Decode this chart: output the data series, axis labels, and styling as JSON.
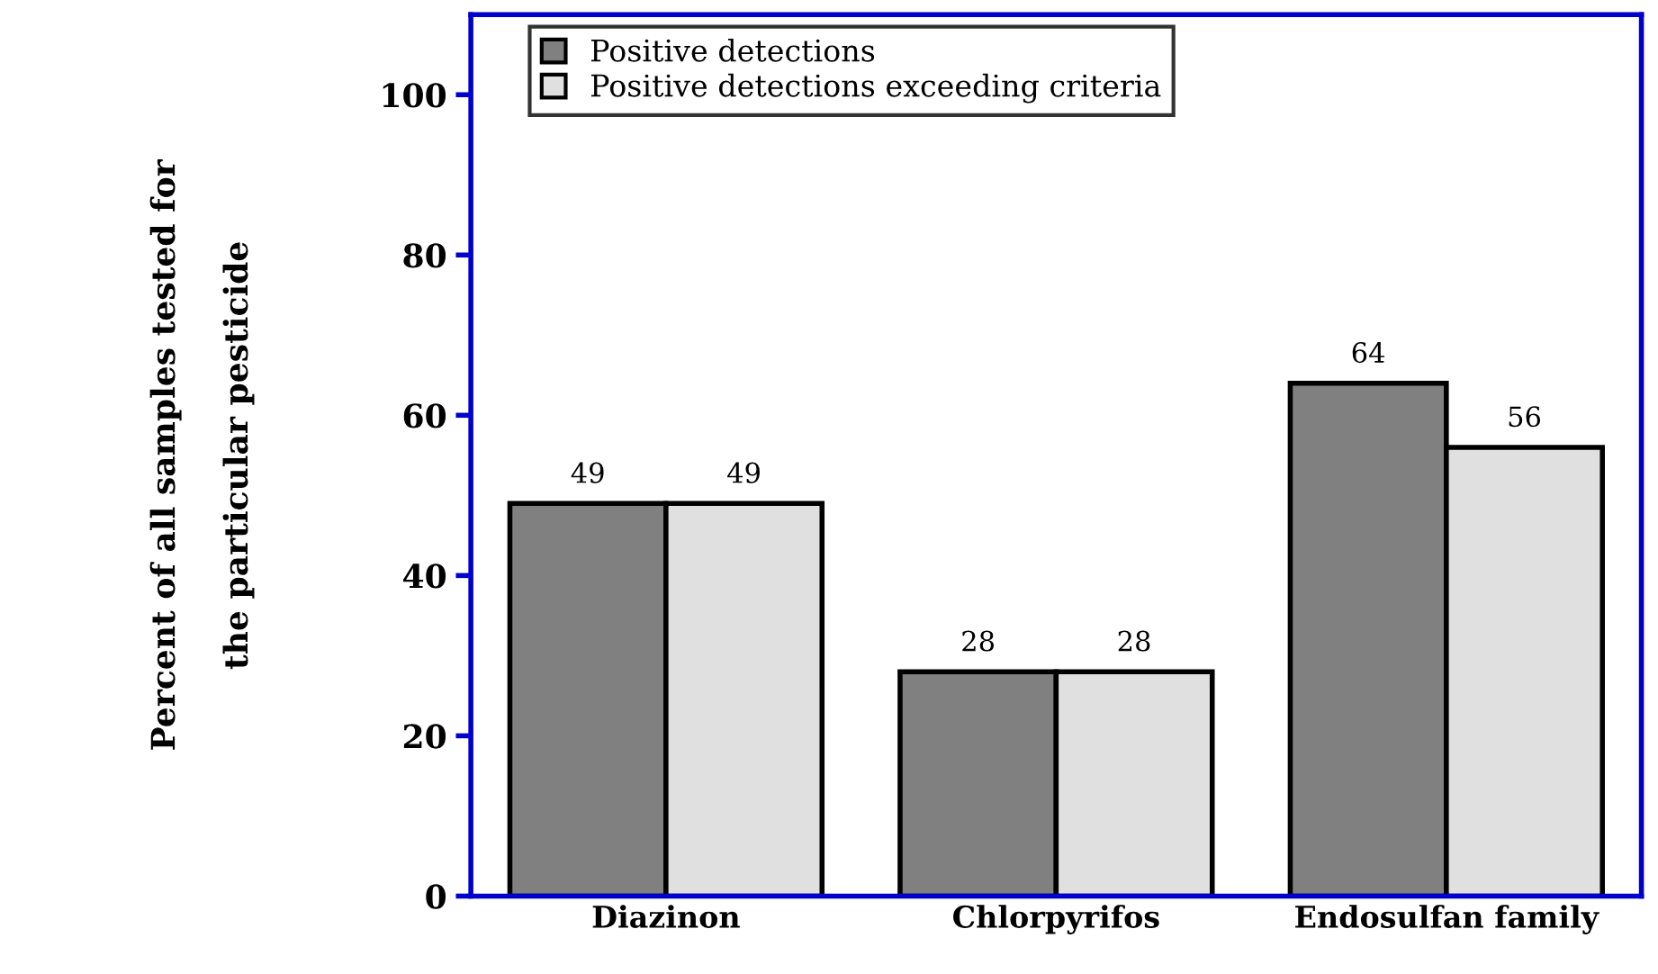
{
  "chart_data": {
    "type": "bar",
    "ylabel": "Percent of all samples tested for\n\nthe particular pesticide",
    "categories": [
      "Diazinon",
      "Chlorpyrifos",
      "Endosulfan family"
    ],
    "series": [
      {
        "name": "Positive detections",
        "color": "#808080",
        "values": [
          49,
          28,
          64
        ]
      },
      {
        "name": "Positive detections exceeding criteria",
        "color": "#e0e0e0",
        "values": [
          49,
          28,
          56
        ]
      }
    ],
    "ylim": [
      0,
      110
    ],
    "yticks": [
      0,
      20,
      40,
      60,
      80,
      100
    ],
    "data_labels": true,
    "grid": false,
    "legend": "top left"
  }
}
